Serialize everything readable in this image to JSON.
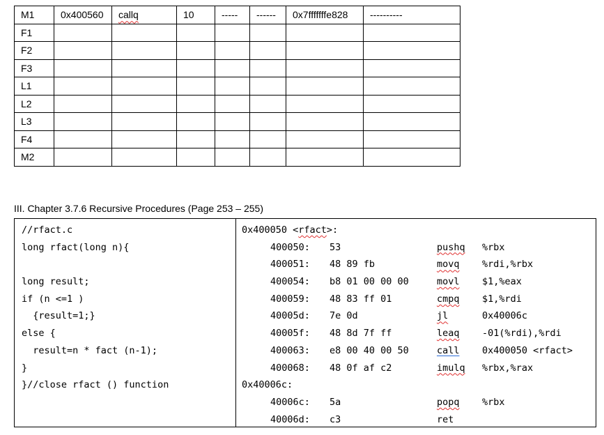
{
  "trace_table": {
    "rows": [
      [
        "M1",
        "0x400560",
        "callq",
        "10",
        "-----",
        "------",
        "0x7fffffffe828",
        "----------"
      ],
      [
        "F1",
        "",
        "",
        "",
        "",
        "",
        "",
        ""
      ],
      [
        "F2",
        "",
        "",
        "",
        "",
        "",
        "",
        ""
      ],
      [
        "F3",
        "",
        "",
        "",
        "",
        "",
        "",
        ""
      ],
      [
        "L1",
        "",
        "",
        "",
        "",
        "",
        "",
        ""
      ],
      [
        "L2",
        "",
        "",
        "",
        "",
        "",
        "",
        ""
      ],
      [
        "L3",
        "",
        "",
        "",
        "",
        "",
        "",
        ""
      ],
      [
        "F4",
        "",
        "",
        "",
        "",
        "",
        "",
        ""
      ],
      [
        "M2",
        "",
        "",
        "",
        "",
        "",
        "",
        ""
      ]
    ]
  },
  "section": {
    "heading": "III. Chapter 3.7.6 Recursive Procedures (Page 253 – 255)",
    "c_code": [
      "//rfact.c",
      "long rfact(long n){",
      "",
      "long result;",
      "if (n <=1 )",
      "  {result=1;}",
      "else {",
      "  result=n * fact (n-1);",
      "}",
      "}//close rfact () function"
    ],
    "asm_labels": [
      "0x400050 <rfact>:",
      "0x40006c:"
    ],
    "asm": [
      {
        "addr": "400050:",
        "bytes": "53",
        "mnem": "pushq",
        "ops": "%rbx"
      },
      {
        "addr": "400051:",
        "bytes": "48 89 fb",
        "mnem": "movq",
        "ops": "%rdi,%rbx"
      },
      {
        "addr": "400054:",
        "bytes": "b8 01 00 00 00",
        "mnem": "movl",
        "ops": "$1,%eax"
      },
      {
        "addr": "400059:",
        "bytes": "48 83 ff 01",
        "mnem": "cmpq",
        "ops": "$1,%rdi"
      },
      {
        "addr": "40005d:",
        "bytes": "7e 0d",
        "mnem": "jl",
        "ops": "0x40006c"
      },
      {
        "addr": "40005f:",
        "bytes": "48 8d 7f ff",
        "mnem": "leaq",
        "ops": "-01(%rdi),%rdi"
      },
      {
        "addr": "400063:",
        "bytes": "e8 00 40 00 50",
        "mnem": "call",
        "ops": "0x400050 <rfact>"
      },
      {
        "addr": "400068:",
        "bytes": "48 0f af c2",
        "mnem": "imulq",
        "ops": "%rbx,%rax"
      },
      {
        "addr": "40006c:",
        "bytes": "5a",
        "mnem": "popq",
        "ops": "%rbx"
      },
      {
        "addr": "40006d:",
        "bytes": "c3",
        "mnem": "ret",
        "ops": ""
      }
    ]
  }
}
